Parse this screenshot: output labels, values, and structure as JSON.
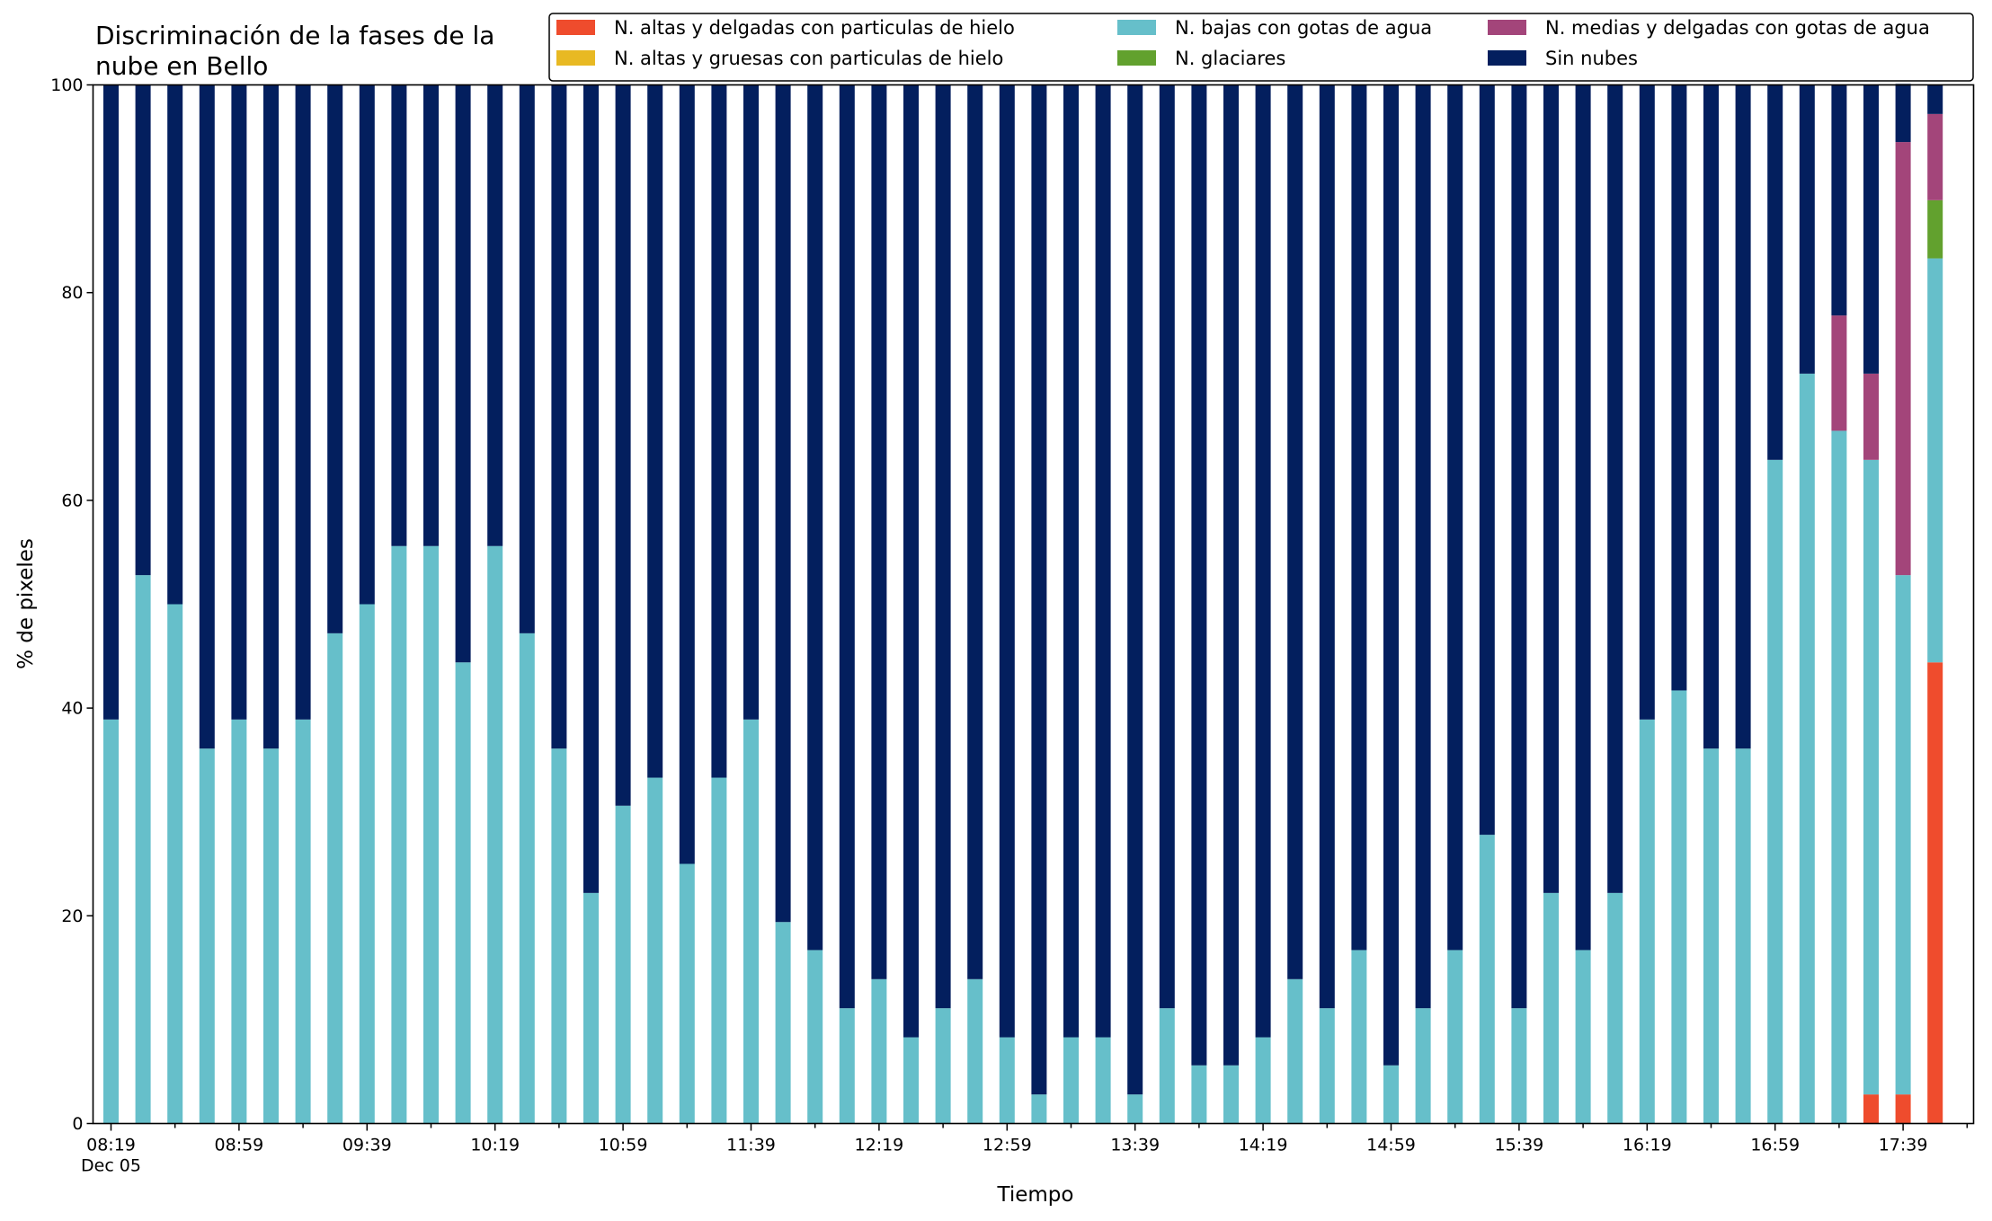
{
  "chart_data": {
    "type": "bar",
    "stacked": true,
    "title": "Discriminación de la fases de la\nnube en Bello",
    "xlabel": "Tiempo",
    "ylabel": "% de pixeles",
    "ylim": [
      0,
      100
    ],
    "yticks": [
      0,
      20,
      40,
      60,
      80,
      100
    ],
    "grid": false,
    "legend_position": "top-right",
    "x_start": "08:19",
    "x_interval_minutes": 10,
    "x_tick_labels": [
      "08:19",
      "08:59",
      "09:39",
      "10:19",
      "10:59",
      "11:39",
      "12:19",
      "12:59",
      "13:39",
      "14:19",
      "14:59",
      "15:39",
      "16:19",
      "16:59",
      "17:39"
    ],
    "x_date_label": "Dec 05",
    "categories": [
      "08:19",
      "08:29",
      "08:39",
      "08:49",
      "08:59",
      "09:09",
      "09:19",
      "09:29",
      "09:39",
      "09:49",
      "09:59",
      "10:09",
      "10:19",
      "10:29",
      "10:39",
      "10:49",
      "10:59",
      "11:09",
      "11:19",
      "11:29",
      "11:39",
      "11:49",
      "11:59",
      "12:09",
      "12:19",
      "12:29",
      "12:39",
      "12:49",
      "12:59",
      "13:09",
      "13:19",
      "13:29",
      "13:39",
      "13:49",
      "13:59",
      "14:09",
      "14:19",
      "14:29",
      "14:39",
      "14:49",
      "14:59",
      "15:09",
      "15:19",
      "15:29",
      "15:39",
      "15:49",
      "15:59",
      "16:09",
      "16:19",
      "16:29",
      "16:39",
      "16:49",
      "16:59",
      "17:09",
      "17:19",
      "17:29",
      "17:39",
      "17:49"
    ],
    "series": [
      {
        "name": "N. altas y delgadas con particulas de hielo",
        "color": "#ef4c2d",
        "values": [
          0,
          0,
          0,
          0,
          0,
          0,
          0,
          0,
          0,
          0,
          0,
          0,
          0,
          0,
          0,
          0,
          0,
          0,
          0,
          0,
          0,
          0,
          0,
          0,
          0,
          0,
          0,
          0,
          0,
          0,
          0,
          0,
          0,
          0,
          0,
          0,
          0,
          0,
          0,
          0,
          0,
          0,
          0,
          0,
          0,
          0,
          0,
          0,
          0,
          0,
          0,
          0,
          0,
          0,
          0,
          2.8,
          2.8,
          44.4
        ]
      },
      {
        "name": "N. altas y gruesas con particulas de hielo",
        "color": "#e8b923",
        "values": [
          0,
          0,
          0,
          0,
          0,
          0,
          0,
          0,
          0,
          0,
          0,
          0,
          0,
          0,
          0,
          0,
          0,
          0,
          0,
          0,
          0,
          0,
          0,
          0,
          0,
          0,
          0,
          0,
          0,
          0,
          0,
          0,
          0,
          0,
          0,
          0,
          0,
          0,
          0,
          0,
          0,
          0,
          0,
          0,
          0,
          0,
          0,
          0,
          0,
          0,
          0,
          0,
          0,
          0,
          0,
          0,
          0,
          0
        ]
      },
      {
        "name": "N. bajas con gotas de agua",
        "color": "#66bfca",
        "values": [
          38.9,
          52.8,
          50,
          36.1,
          38.9,
          36.1,
          38.9,
          47.2,
          50,
          55.6,
          55.6,
          44.4,
          55.6,
          47.2,
          36.1,
          22.2,
          30.6,
          33.3,
          25,
          33.3,
          38.9,
          19.4,
          16.7,
          11.1,
          13.9,
          8.3,
          11.1,
          13.9,
          8.3,
          2.8,
          8.3,
          8.3,
          2.8,
          11.1,
          5.6,
          5.6,
          8.3,
          13.9,
          11.1,
          16.7,
          5.6,
          11.1,
          16.7,
          27.8,
          11.1,
          22.2,
          16.7,
          22.2,
          38.9,
          41.7,
          36.1,
          36.1,
          63.9,
          72.2,
          66.7,
          61.1,
          50,
          38.9
        ]
      },
      {
        "name": "N. glaciares",
        "color": "#62a12e",
        "values": [
          0,
          0,
          0,
          0,
          0,
          0,
          0,
          0,
          0,
          0,
          0,
          0,
          0,
          0,
          0,
          0,
          0,
          0,
          0,
          0,
          0,
          0,
          0,
          0,
          0,
          0,
          0,
          0,
          0,
          0,
          0,
          0,
          0,
          0,
          0,
          0,
          0,
          0,
          0,
          0,
          0,
          0,
          0,
          0,
          0,
          0,
          0,
          0,
          0,
          0,
          0,
          0,
          0,
          0,
          0,
          0,
          0,
          5.6
        ]
      },
      {
        "name": "N. medias y delgadas con gotas de agua",
        "color": "#a3457a",
        "values": [
          0,
          0,
          0,
          0,
          0,
          0,
          0,
          0,
          0,
          0,
          0,
          0,
          0,
          0,
          0,
          0,
          0,
          0,
          0,
          0,
          0,
          0,
          0,
          0,
          0,
          0,
          0,
          0,
          0,
          0,
          0,
          0,
          0,
          0,
          0,
          0,
          0,
          0,
          0,
          0,
          0,
          0,
          0,
          0,
          0,
          0,
          0,
          0,
          0,
          0,
          0,
          0,
          0,
          0,
          11.1,
          8.3,
          41.7,
          8.3
        ]
      },
      {
        "name": "Sin nubes",
        "color": "#031f5e",
        "values": [
          61.1,
          47.2,
          50,
          63.9,
          61.1,
          63.9,
          61.1,
          52.8,
          50,
          44.4,
          44.4,
          55.6,
          44.4,
          52.8,
          63.9,
          77.8,
          69.4,
          66.7,
          75,
          66.7,
          61.1,
          80.6,
          83.3,
          88.9,
          86.1,
          91.7,
          88.9,
          86.1,
          91.7,
          97.2,
          91.7,
          91.7,
          97.2,
          88.9,
          94.4,
          94.4,
          91.7,
          86.1,
          88.9,
          83.3,
          94.4,
          88.9,
          83.3,
          72.2,
          88.9,
          77.8,
          83.3,
          77.8,
          61.1,
          58.3,
          63.9,
          63.9,
          36.1,
          27.8,
          22.2,
          27.8,
          5.6,
          2.8
        ]
      }
    ]
  }
}
